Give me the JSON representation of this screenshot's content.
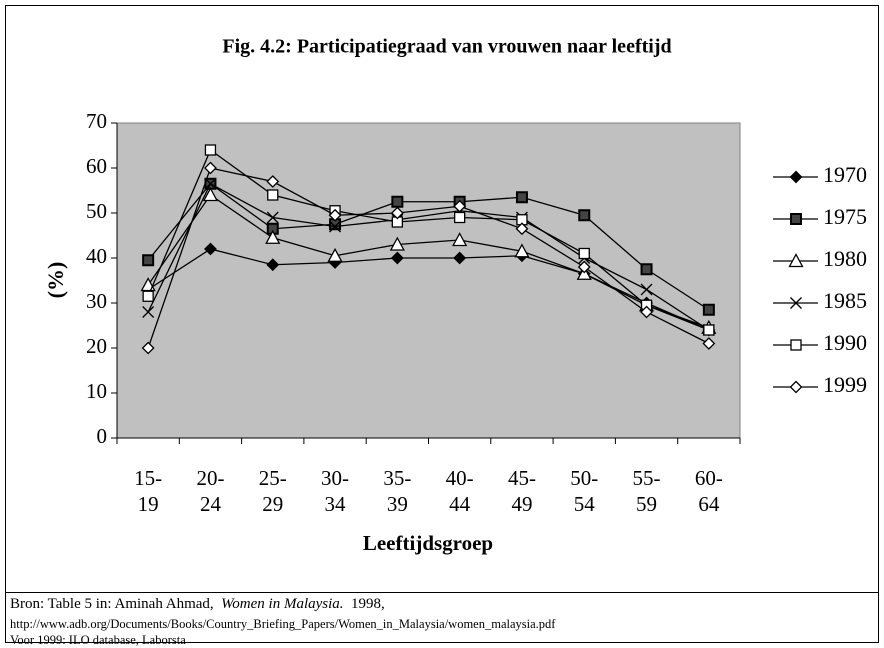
{
  "chart_data": {
    "type": "line",
    "title": "Fig. 4.2: Participatiegraad van vrouwen naar leeftijd",
    "y_label": "(%)",
    "x_label": "Leeftijdsgroep",
    "categories": [
      "15-19",
      "20-24",
      "25-29",
      "30-34",
      "35-39",
      "40-44",
      "45-49",
      "50-54",
      "55-59",
      "60-64"
    ],
    "ylim": [
      0,
      70
    ],
    "yticks": [
      0,
      10,
      20,
      30,
      40,
      50,
      60,
      70
    ],
    "grid": false,
    "legend": "right",
    "background": "#c0c0c0",
    "series": [
      {
        "name": "1970",
        "color": "#000000",
        "marker": "diamond-filled",
        "values": [
          33,
          42,
          38.5,
          39,
          40,
          40,
          40.5,
          36.5,
          30,
          24
        ]
      },
      {
        "name": "1975",
        "color": "#000000",
        "marker": "square-filled",
        "values": [
          39.5,
          56.5,
          46.5,
          47.5,
          52.5,
          52.5,
          53.5,
          49.5,
          37.5,
          28.5
        ]
      },
      {
        "name": "1980",
        "color": "#000000",
        "marker": "triangle-open",
        "values": [
          34,
          54,
          44.5,
          40.5,
          43,
          44,
          41.5,
          36.5,
          29.5,
          24.5
        ]
      },
      {
        "name": "1985",
        "color": "#000000",
        "marker": "cross",
        "values": [
          28,
          56.5,
          49,
          47,
          48.5,
          50.5,
          49,
          40,
          33,
          24
        ]
      },
      {
        "name": "1990",
        "color": "#000000",
        "marker": "square-open",
        "values": [
          31.5,
          64,
          54,
          50.5,
          48,
          49,
          48.5,
          41,
          29.5,
          24
        ]
      },
      {
        "name": "1999",
        "color": "#000000",
        "marker": "diamond-open",
        "values": [
          20,
          60,
          57,
          49.5,
          50,
          51.5,
          46.5,
          38,
          28,
          21
        ]
      }
    ]
  },
  "source": {
    "prefix": "Bron: Table 5  in: Aminah Ahmad,",
    "book": "Women in Malaysia.",
    "year": "1998,",
    "url": "http://www.adb.org/Documents/Books/Country_Briefing_Papers/Women_in_Malaysia/women_malaysia.pdf",
    "note": "Voor 1999: ILO database, Laborsta"
  }
}
